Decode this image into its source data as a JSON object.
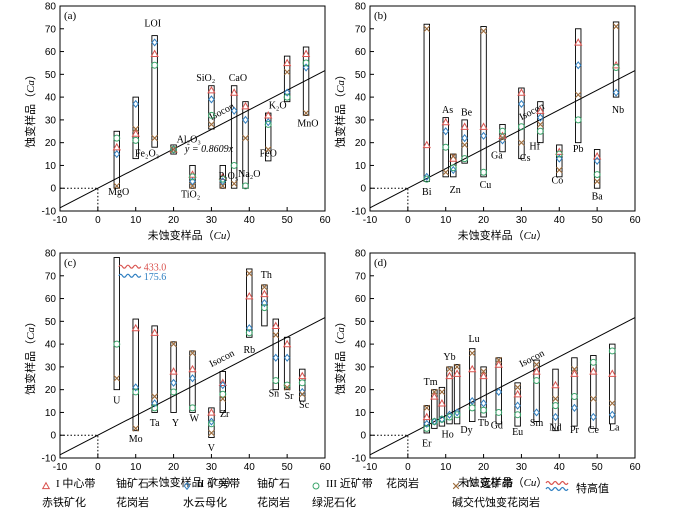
{
  "colors": {
    "zone1": "#d9534f",
    "zone2": "#2f7fc1",
    "zone3": "#3aa56b",
    "zone4": "#9b6a3a",
    "range_box": "#000000",
    "high_red": "#d9534f",
    "high_blue": "#2f7fc1"
  },
  "legend": {
    "items": [
      {
        "marker": "triangle",
        "line1": "I 中心带",
        "line2": "赤铁矿化",
        "line3": "铀矿石",
        "line4": "花岗岩"
      },
      {
        "marker": "diamond",
        "line1": "II 矿旁带",
        "line2": "水云母化",
        "line3": "铀矿石",
        "line4": "花岗岩"
      },
      {
        "marker": "circle",
        "line1": "III 近矿带",
        "line2": "绿泥石化",
        "line3": "花岗岩"
      },
      {
        "marker": "cross",
        "line1": "IV 远矿带",
        "line2": "碱交代蚀变花岗岩"
      },
      {
        "marker": "wave",
        "line1": "特高值"
      }
    ]
  },
  "chart_data": [
    {
      "panel": "(a)",
      "type": "scatter",
      "xlabel": "未蚀变样品",
      "xlabel_var": "Cu",
      "ylabel": "蚀变样品",
      "ylabel_var": "Ca",
      "xlim": [
        -10,
        60
      ],
      "ylim": [
        -10,
        80
      ],
      "xticks": [
        -10,
        0,
        10,
        20,
        30,
        40,
        50,
        60
      ],
      "yticks": [
        -10,
        0,
        10,
        20,
        30,
        40,
        50,
        60,
        70,
        80
      ],
      "isocon_slope": 0.8609,
      "isocon_label": "Isocon",
      "equation": "y = 0.8609x",
      "reference_point": [
        0,
        0
      ],
      "elements": [
        {
          "name": "MgO",
          "x": 5,
          "box": [
            0,
            25
          ],
          "v": [
            18,
            15,
            22,
            1
          ],
          "label_at": [
            5.5,
            -3
          ]
        },
        {
          "name": "Fe₂O₃",
          "x": 10,
          "box": [
            13,
            40
          ],
          "v": [
            24,
            37,
            21,
            26
          ],
          "label_at": [
            13,
            14
          ]
        },
        {
          "name": "LOI",
          "x": 15,
          "box": [
            18,
            67
          ],
          "v": [
            59,
            64,
            54,
            22
          ],
          "label_at": [
            14.5,
            71
          ]
        },
        {
          "name": "Al₂O₃",
          "x": 20,
          "box": [
            15,
            19
          ],
          "v": [
            17,
            17,
            17,
            17
          ],
          "label_at": [
            24,
            20
          ]
        },
        {
          "name": "TiO₂",
          "x": 25,
          "box": [
            0,
            10
          ],
          "v": [
            6,
            3,
            5,
            1
          ],
          "label_at": [
            24.5,
            -4
          ]
        },
        {
          "name": "SiO₂",
          "x": 30,
          "box": [
            26,
            45
          ],
          "v": [
            43,
            39,
            32,
            28
          ],
          "label_at": [
            28.5,
            47
          ]
        },
        {
          "name": "P₂O₅",
          "x": 33,
          "box": [
            0,
            10
          ],
          "v": [
            5,
            3,
            4,
            1
          ],
          "label_at": [
            34.5,
            4
          ]
        },
        {
          "name": "CaO",
          "x": 36,
          "box": [
            0,
            45
          ],
          "v": [
            42,
            34,
            10,
            2
          ],
          "label_at": [
            37,
            47
          ]
        },
        {
          "name": "Na₂O",
          "x": 39,
          "box": [
            0,
            38
          ],
          "v": [
            36,
            30,
            1,
            22
          ],
          "label_at": [
            40,
            5
          ]
        },
        {
          "name": "FeO",
          "x": 45,
          "box": [
            12,
            33
          ],
          "v": [
            32,
            29,
            28,
            17
          ],
          "label_at": [
            45,
            14
          ]
        },
        {
          "name": "K₂O",
          "x": 50,
          "box": [
            38,
            58
          ],
          "v": [
            55,
            42,
            40,
            51
          ],
          "label_at": [
            47.5,
            35
          ]
        },
        {
          "name": "MnO",
          "x": 55,
          "box": [
            32,
            62
          ],
          "v": [
            59,
            53,
            55,
            33
          ],
          "label_at": [
            55.5,
            27
          ]
        }
      ]
    },
    {
      "panel": "(b)",
      "type": "scatter",
      "xlabel": "未蚀变样品",
      "xlabel_var": "Cu",
      "ylabel": "蚀变样品",
      "ylabel_var": "Ca",
      "xlim": [
        -10,
        60
      ],
      "ylim": [
        -10,
        80
      ],
      "xticks": [
        -10,
        0,
        10,
        20,
        30,
        40,
        50,
        60
      ],
      "yticks": [
        -10,
        0,
        10,
        20,
        30,
        40,
        50,
        60,
        70,
        80
      ],
      "isocon_slope": 0.8609,
      "isocon_label": "Isocon",
      "reference_point": [
        0,
        0
      ],
      "elements": [
        {
          "name": "Bi",
          "x": 5,
          "box": [
            3,
            72
          ],
          "v": [
            19,
            5,
            4,
            70
          ],
          "label_at": [
            5,
            -3
          ]
        },
        {
          "name": "As",
          "x": 10,
          "box": [
            5,
            31
          ],
          "v": [
            29,
            25,
            18,
            7
          ],
          "label_at": [
            10.5,
            33
          ]
        },
        {
          "name": "Zn",
          "x": 12,
          "box": [
            5,
            15
          ],
          "v": [
            13,
            8,
            9,
            14
          ],
          "label_at": [
            12.5,
            -2
          ]
        },
        {
          "name": "Be",
          "x": 15,
          "box": [
            11,
            30
          ],
          "v": [
            27,
            22,
            13,
            19
          ],
          "label_at": [
            15.5,
            32
          ]
        },
        {
          "name": "Cu",
          "x": 20,
          "box": [
            5,
            71
          ],
          "v": [
            27,
            23,
            7,
            69
          ],
          "label_at": [
            20.5,
            0
          ]
        },
        {
          "name": "Ga",
          "x": 25,
          "box": [
            16,
            28
          ],
          "v": [
            23,
            21,
            25,
            22
          ],
          "label_at": [
            23.5,
            13
          ]
        },
        {
          "name": "Cs",
          "x": 30,
          "box": [
            13,
            44
          ],
          "v": [
            42,
            37,
            27,
            20
          ],
          "label_at": [
            31,
            12
          ]
        },
        {
          "name": "Hf",
          "x": 35,
          "box": [
            20,
            38
          ],
          "v": [
            34,
            31,
            25,
            28
          ],
          "label_at": [
            33.5,
            17
          ]
        },
        {
          "name": "Co",
          "x": 40,
          "box": [
            5,
            19
          ],
          "v": [
            16,
            13,
            15,
            8
          ],
          "label_at": [
            39.5,
            2
          ]
        },
        {
          "name": "Pb",
          "x": 45,
          "box": [
            20,
            70
          ],
          "v": [
            64,
            54,
            30,
            41
          ],
          "label_at": [
            45,
            16
          ]
        },
        {
          "name": "Ba",
          "x": 50,
          "box": [
            0,
            17
          ],
          "v": [
            14,
            12,
            6,
            3
          ],
          "label_at": [
            50,
            -5
          ]
        },
        {
          "name": "Nb",
          "x": 55,
          "box": [
            40,
            73
          ],
          "v": [
            54,
            42,
            53,
            71
          ],
          "label_at": [
            55.5,
            33
          ]
        }
      ]
    },
    {
      "panel": "(c)",
      "type": "scatter",
      "xlabel": "未蚀变样品",
      "xlabel_var": "Cu",
      "ylabel": "蚀变样品",
      "ylabel_var": "Ca",
      "xlim": [
        -10,
        60
      ],
      "ylim": [
        -10,
        80
      ],
      "xticks": [
        -10,
        0,
        10,
        20,
        30,
        40,
        50,
        60
      ],
      "yticks": [
        -10,
        0,
        10,
        20,
        30,
        40,
        50,
        60,
        70,
        80
      ],
      "isocon_slope": 0.8609,
      "isocon_label": "Isocon",
      "reference_point": [
        0,
        0
      ],
      "high_values": [
        {
          "value_text": "433.0",
          "color": "red",
          "x": 5,
          "y": 74
        },
        {
          "value_text": "175.6",
          "color": "blue",
          "x": 5,
          "y": 70
        }
      ],
      "elements": [
        {
          "name": "U",
          "x": 5,
          "box": [
            20,
            78
          ],
          "v": [
            null,
            null,
            40,
            25
          ],
          "label_at": [
            5,
            14
          ]
        },
        {
          "name": "Mo",
          "x": 10,
          "box": [
            2,
            51
          ],
          "v": [
            47,
            21,
            19,
            3
          ],
          "label_at": [
            10,
            -3
          ]
        },
        {
          "name": "Ta",
          "x": 15,
          "box": [
            10,
            48
          ],
          "v": [
            45,
            14,
            12,
            17
          ],
          "label_at": [
            15,
            4
          ]
        },
        {
          "name": "Y",
          "x": 20,
          "box": [
            10,
            41
          ],
          "v": [
            28,
            23,
            19,
            40
          ],
          "label_at": [
            20.5,
            4
          ]
        },
        {
          "name": "W",
          "x": 25,
          "box": [
            10,
            37
          ],
          "v": [
            29,
            25,
            12,
            36
          ],
          "label_at": [
            25.5,
            6
          ]
        },
        {
          "name": "V",
          "x": 30,
          "box": [
            -1,
            12
          ],
          "v": [
            10,
            6,
            5,
            1
          ],
          "label_at": [
            30,
            -7
          ]
        },
        {
          "name": "Zr",
          "x": 33,
          "box": [
            10,
            28
          ],
          "v": [
            23,
            22,
            18,
            16
          ],
          "label_at": [
            33.5,
            8
          ]
        },
        {
          "name": "Rb",
          "x": 40,
          "box": [
            43,
            73
          ],
          "v": [
            61,
            47,
            45,
            71
          ],
          "label_at": [
            40,
            36
          ]
        },
        {
          "name": "Th",
          "x": 44,
          "box": [
            48,
            66
          ],
          "v": [
            62,
            58,
            56,
            65
          ],
          "label_at": [
            44.5,
            69
          ]
        },
        {
          "name": "Sn",
          "x": 47,
          "box": [
            20,
            51
          ],
          "v": [
            48,
            34,
            24,
            44
          ],
          "label_at": [
            46.5,
            17
          ]
        },
        {
          "name": "Sr",
          "x": 50,
          "box": [
            20,
            43
          ],
          "v": [
            40,
            34,
            22,
            21
          ],
          "label_at": [
            50.5,
            16
          ]
        },
        {
          "name": "Sc",
          "x": 54,
          "box": [
            15,
            29
          ],
          "v": [
            26,
            19,
            23,
            18
          ],
          "label_at": [
            54.5,
            12
          ]
        }
      ]
    },
    {
      "panel": "(d)",
      "type": "scatter",
      "xlabel": "未蚀变样品",
      "xlabel_var": "Cu",
      "ylabel": "蚀变样品",
      "ylabel_var": "Ca",
      "xlim": [
        -10,
        60
      ],
      "ylim": [
        -10,
        80
      ],
      "xticks": [
        -10,
        0,
        10,
        20,
        30,
        40,
        50,
        60
      ],
      "yticks": [
        -10,
        0,
        10,
        20,
        30,
        40,
        50,
        60,
        70,
        80
      ],
      "isocon_slope": 0.8609,
      "isocon_label": "Isocon",
      "reference_point": [
        0,
        0
      ],
      "elements": [
        {
          "name": "Er",
          "x": 5,
          "box": [
            1,
            13
          ],
          "v": [
            8,
            5,
            3,
            12
          ],
          "label_at": [
            5,
            -5
          ]
        },
        {
          "name": "Tm",
          "x": 7,
          "box": [
            3,
            20
          ],
          "v": [
            17,
            6,
            6,
            19
          ],
          "label_at": [
            6,
            22
          ]
        },
        {
          "name": "Ho",
          "x": 9,
          "box": [
            4,
            21
          ],
          "v": [
            14,
            7,
            7,
            19
          ],
          "label_at": [
            10.5,
            -1
          ]
        },
        {
          "name": "Yb",
          "x": 11,
          "box": [
            5,
            30
          ],
          "v": [
            26,
            9,
            8,
            29
          ],
          "label_at": [
            11,
            33
          ]
        },
        {
          "name": "Dy",
          "x": 13,
          "box": [
            5,
            31
          ],
          "v": [
            27,
            10,
            9,
            30
          ],
          "label_at": [
            15.5,
            1
          ]
        },
        {
          "name": "Lu",
          "x": 17,
          "box": [
            6,
            38
          ],
          "v": [
            29,
            15,
            12,
            36
          ],
          "label_at": [
            17.5,
            41
          ]
        },
        {
          "name": "Tb",
          "x": 20,
          "box": [
            8,
            30
          ],
          "v": [
            26,
            14,
            11,
            28
          ],
          "label_at": [
            20,
            4
          ]
        },
        {
          "name": "Gd",
          "x": 24,
          "box": [
            5,
            34
          ],
          "v": [
            31,
            19,
            10,
            33
          ],
          "label_at": [
            23.5,
            3
          ]
        },
        {
          "name": "Eu",
          "x": 29,
          "box": [
            4,
            23
          ],
          "v": [
            18,
            13,
            9,
            21
          ],
          "label_at": [
            29,
            0
          ]
        },
        {
          "name": "Sm",
          "x": 34,
          "box": [
            6,
            33
          ],
          "v": [
            28,
            10,
            24,
            31
          ],
          "label_at": [
            34,
            4
          ]
        },
        {
          "name": "Nd",
          "x": 39,
          "box": [
            2,
            29
          ],
          "v": [
            22,
            8,
            13,
            16
          ],
          "label_at": [
            39,
            2
          ]
        },
        {
          "name": "Pr",
          "x": 44,
          "box": [
            4,
            34
          ],
          "v": [
            27,
            12,
            17,
            29
          ],
          "label_at": [
            44,
            1
          ]
        },
        {
          "name": "Ce",
          "x": 49,
          "box": [
            3,
            35
          ],
          "v": [
            28,
            8,
            32,
            16
          ],
          "label_at": [
            49,
            1
          ]
        },
        {
          "name": "La",
          "x": 54,
          "box": [
            5,
            40
          ],
          "v": [
            27,
            9,
            37,
            14
          ],
          "label_at": [
            54.5,
            2
          ]
        }
      ]
    }
  ]
}
